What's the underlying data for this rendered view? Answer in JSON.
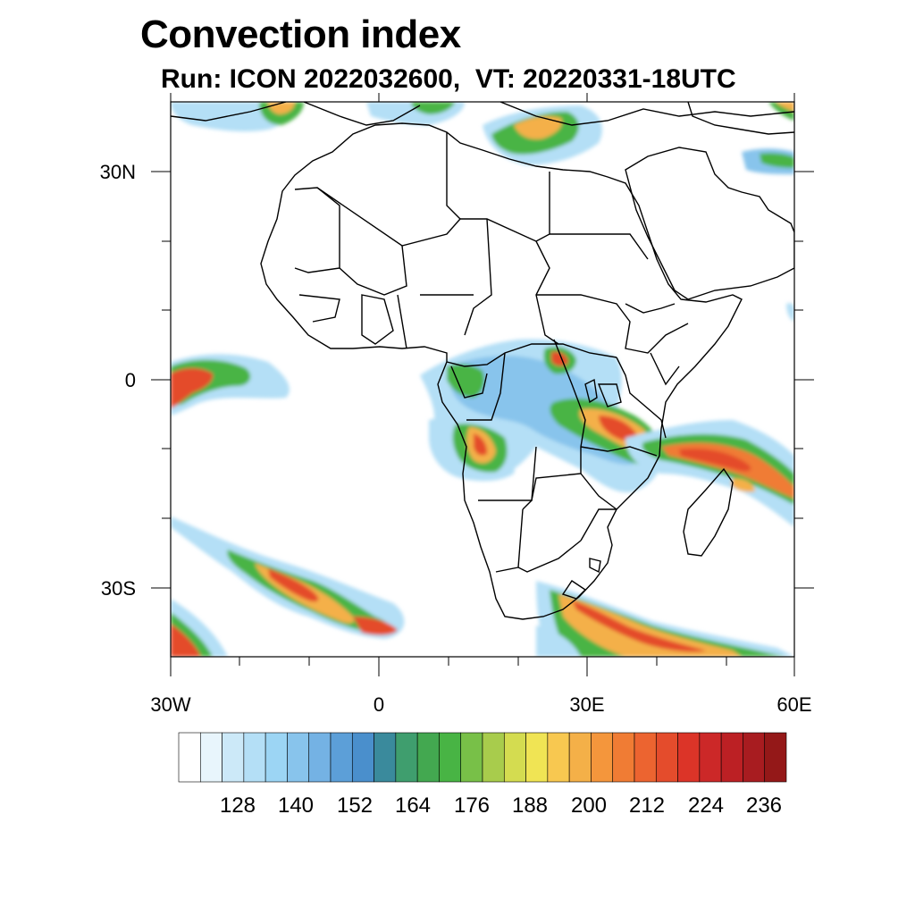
{
  "title": "Convection index",
  "subtitle": "Run: ICON 2022032600,  VT: 20220331-18UTC",
  "lat_labels": [
    "30N",
    "0",
    "30S"
  ],
  "lon_labels": [
    "30W",
    "0",
    "30E",
    "60E"
  ],
  "colorbar": {
    "labels": [
      "128",
      "140",
      "152",
      "164",
      "176",
      "188",
      "200",
      "212",
      "224",
      "236"
    ],
    "colors": [
      "#ffffff",
      "#e8f5fc",
      "#cce9f8",
      "#b4dff6",
      "#9cd5f4",
      "#88c4ec",
      "#74b2e4",
      "#5c9fd8",
      "#4a8fcc",
      "#3a8a9c",
      "#3f9e6e",
      "#43a850",
      "#48b444",
      "#78c048",
      "#a8cc4c",
      "#d4dc50",
      "#f0e454",
      "#f8c850",
      "#f4b048",
      "#f4963c",
      "#f07c34",
      "#ec6430",
      "#e44c2c",
      "#dc3428",
      "#cc2828",
      "#bc2024",
      "#a81c20",
      "#941818"
    ]
  },
  "map": {
    "projection": "cylindrical-equidistant",
    "lon_range": [
      -30,
      60
    ],
    "lat_range": [
      -40,
      40
    ],
    "variable": "convection index"
  }
}
